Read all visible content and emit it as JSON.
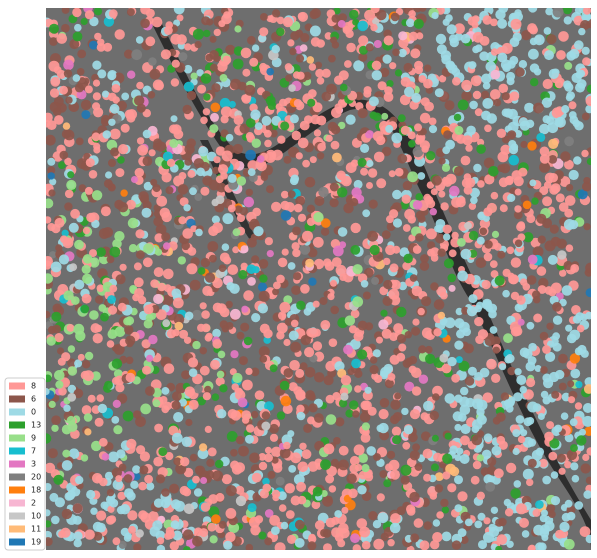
{
  "legend": {
    "items": [
      {
        "label": "8",
        "color": "#ff9896"
      },
      {
        "label": "6",
        "color": "#8c564b"
      },
      {
        "label": "0",
        "color": "#9edae5"
      },
      {
        "label": "13",
        "color": "#2ca02c"
      },
      {
        "label": "9",
        "color": "#98df8a"
      },
      {
        "label": "7",
        "color": "#17becf"
      },
      {
        "label": "3",
        "color": "#e377c2"
      },
      {
        "label": "20",
        "color": "#7f7f7f"
      },
      {
        "label": "18",
        "color": "#ff7f0e"
      },
      {
        "label": "2",
        "color": "#f7b6d2"
      },
      {
        "label": "10",
        "color": "#c7c7c7"
      },
      {
        "label": "11",
        "color": "#ffbb78"
      },
      {
        "label": "19",
        "color": "#1f77b4"
      }
    ]
  }
}
